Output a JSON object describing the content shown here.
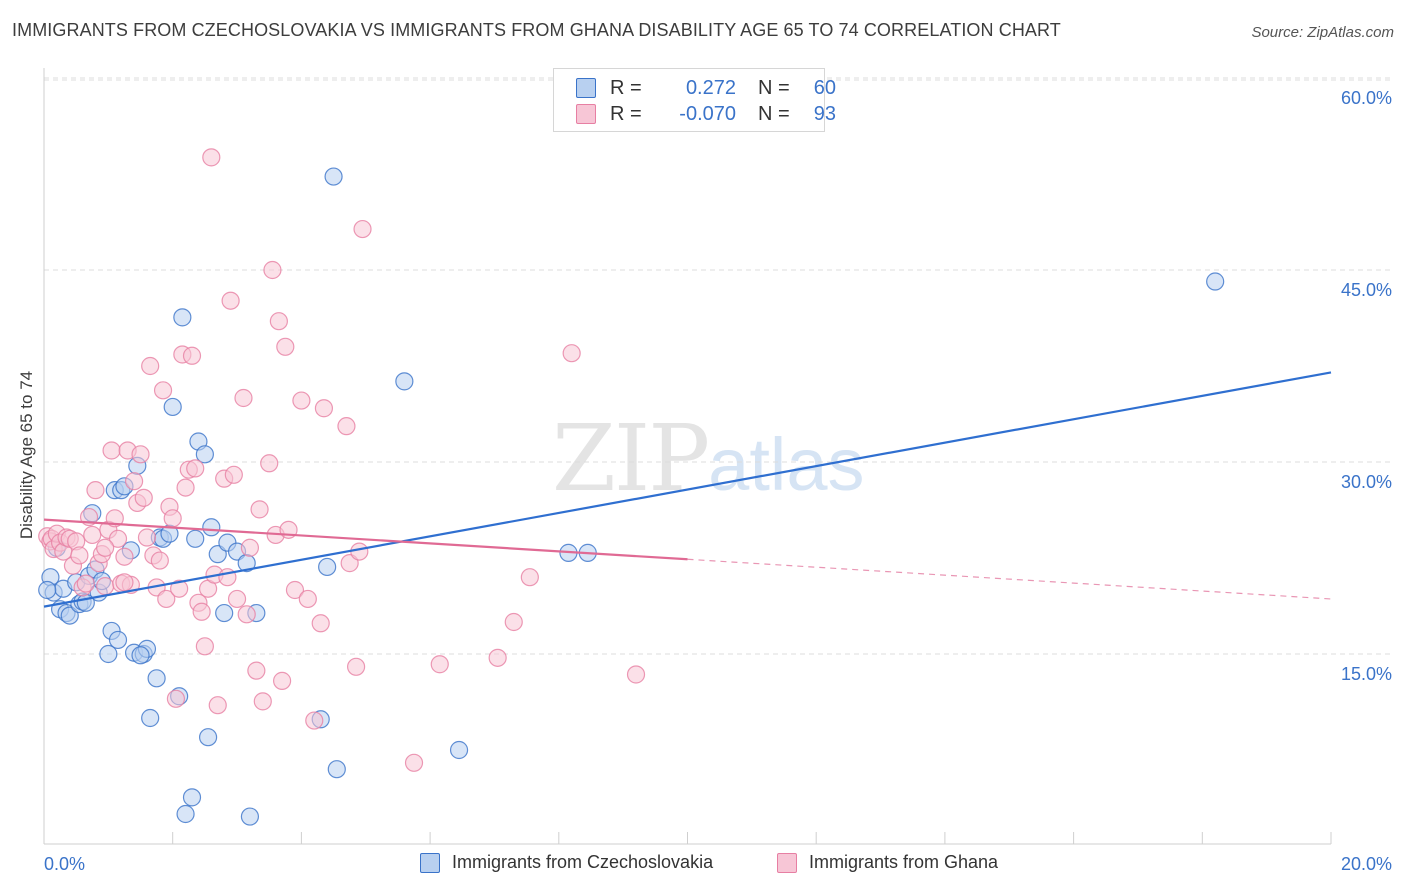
{
  "title": "IMMIGRANTS FROM CZECHOSLOVAKIA VS IMMIGRANTS FROM GHANA DISABILITY AGE 65 TO 74 CORRELATION CHART",
  "source": "Source: ZipAtlas.com",
  "watermark": {
    "zip": "ZIP",
    "atlas": "atlas"
  },
  "legend": {
    "rows": [
      {
        "r_label": "R =",
        "r_value": "0.272",
        "n_label": "N =",
        "n_value": "60"
      },
      {
        "r_label": "R =",
        "r_value": "-0.070",
        "n_label": "N =",
        "n_value": "93"
      }
    ]
  },
  "colors": {
    "blue": "#3a73c9",
    "blue_fill": "#b8d0f0",
    "blue_line": "#2f6fd0",
    "pink": "#e77fa3",
    "pink_fill": "#f7c6d6",
    "pink_line": "#e06a94",
    "grid": "#dcdcdc",
    "axis_tick_label": "#3a73c9"
  },
  "chart_data": {
    "type": "scatter",
    "title": "IMMIGRANTS FROM CZECHOSLOVAKIA VS IMMIGRANTS FROM GHANA DISABILITY AGE 65 TO 74 CORRELATION CHART",
    "xlabel": "",
    "ylabel": "Disability Age 65 to 74",
    "xlim": [
      0,
      20
    ],
    "ylim": [
      0,
      60
    ],
    "x_tick_labels": [
      "0.0%",
      "20.0%"
    ],
    "y_ticks": [
      15,
      30,
      45,
      60
    ],
    "y_tick_labels": [
      "15.0%",
      "30.0%",
      "45.0%",
      "60.0%"
    ],
    "grid": true,
    "legend_placement": "bottom",
    "series": [
      {
        "name": "Immigrants from Czechoslovakia",
        "color": "#3a73c9",
        "trend": {
          "x": [
            0,
            20
          ],
          "y": [
            18.7,
            37.0
          ],
          "dashed_from": null
        },
        "points": [
          [
            0.1,
            21.0
          ],
          [
            0.15,
            19.8
          ],
          [
            0.25,
            18.5
          ],
          [
            0.3,
            20.1
          ],
          [
            0.35,
            18.2
          ],
          [
            0.4,
            18.0
          ],
          [
            0.5,
            20.6
          ],
          [
            0.55,
            18.9
          ],
          [
            0.6,
            19.1
          ],
          [
            0.7,
            21.1
          ],
          [
            0.75,
            26.0
          ],
          [
            0.8,
            21.6
          ],
          [
            0.85,
            19.8
          ],
          [
            0.9,
            20.7
          ],
          [
            1.0,
            15.0
          ],
          [
            1.05,
            16.8
          ],
          [
            1.1,
            27.8
          ],
          [
            1.15,
            16.1
          ],
          [
            1.2,
            27.8
          ],
          [
            1.25,
            28.1
          ],
          [
            1.35,
            23.1
          ],
          [
            1.4,
            15.1
          ],
          [
            1.45,
            29.7
          ],
          [
            1.55,
            15.0
          ],
          [
            1.6,
            15.4
          ],
          [
            1.65,
            10.0
          ],
          [
            1.75,
            13.1
          ],
          [
            1.8,
            24.1
          ],
          [
            1.85,
            24.0
          ],
          [
            1.95,
            24.4
          ],
          [
            2.0,
            34.3
          ],
          [
            2.1,
            11.7
          ],
          [
            2.15,
            41.3
          ],
          [
            2.2,
            2.5
          ],
          [
            2.3,
            3.8
          ],
          [
            2.35,
            24.0
          ],
          [
            2.4,
            31.6
          ],
          [
            2.5,
            30.6
          ],
          [
            2.55,
            8.5
          ],
          [
            2.6,
            24.9
          ],
          [
            2.7,
            22.8
          ],
          [
            2.8,
            18.2
          ],
          [
            2.85,
            23.7
          ],
          [
            3.0,
            23.0
          ],
          [
            3.15,
            22.1
          ],
          [
            3.2,
            2.3
          ],
          [
            3.3,
            18.2
          ],
          [
            4.3,
            9.9
          ],
          [
            4.4,
            21.8
          ],
          [
            4.55,
            6.0
          ],
          [
            4.5,
            52.3
          ],
          [
            5.6,
            36.3
          ],
          [
            6.45,
            7.5
          ],
          [
            8.15,
            22.9
          ],
          [
            8.45,
            22.9
          ],
          [
            18.2,
            44.1
          ],
          [
            0.05,
            20.0
          ],
          [
            0.2,
            23.3
          ],
          [
            0.65,
            19.0
          ],
          [
            1.5,
            14.9
          ]
        ]
      },
      {
        "name": "Immigrants from Ghana",
        "color": "#e77fa3",
        "trend": {
          "x": [
            0,
            20
          ],
          "y": [
            25.5,
            19.3
          ],
          "dashed_from": 10.0
        },
        "points": [
          [
            0.05,
            24.2
          ],
          [
            0.1,
            23.8
          ],
          [
            0.12,
            24.0
          ],
          [
            0.15,
            23.2
          ],
          [
            0.2,
            24.4
          ],
          [
            0.25,
            23.7
          ],
          [
            0.3,
            23.0
          ],
          [
            0.35,
            24.1
          ],
          [
            0.4,
            24.0
          ],
          [
            0.45,
            21.9
          ],
          [
            0.5,
            23.8
          ],
          [
            0.55,
            22.7
          ],
          [
            0.6,
            20.2
          ],
          [
            0.65,
            20.5
          ],
          [
            0.7,
            25.7
          ],
          [
            0.75,
            24.3
          ],
          [
            0.8,
            27.8
          ],
          [
            0.85,
            22.1
          ],
          [
            0.9,
            22.8
          ],
          [
            0.95,
            20.3
          ],
          [
            1.0,
            24.7
          ],
          [
            1.05,
            30.9
          ],
          [
            1.1,
            25.6
          ],
          [
            1.15,
            24.0
          ],
          [
            1.2,
            20.5
          ],
          [
            1.25,
            22.6
          ],
          [
            1.3,
            30.9
          ],
          [
            1.35,
            20.4
          ],
          [
            1.4,
            28.5
          ],
          [
            1.45,
            26.8
          ],
          [
            1.5,
            30.6
          ],
          [
            1.55,
            27.2
          ],
          [
            1.6,
            24.1
          ],
          [
            1.65,
            37.5
          ],
          [
            1.7,
            22.7
          ],
          [
            1.75,
            20.2
          ],
          [
            1.8,
            22.3
          ],
          [
            1.85,
            35.6
          ],
          [
            1.9,
            19.3
          ],
          [
            1.95,
            26.5
          ],
          [
            2.0,
            25.6
          ],
          [
            2.05,
            11.5
          ],
          [
            2.1,
            20.1
          ],
          [
            2.15,
            38.4
          ],
          [
            2.2,
            28.0
          ],
          [
            2.25,
            29.4
          ],
          [
            2.3,
            38.3
          ],
          [
            2.35,
            29.5
          ],
          [
            2.4,
            19.0
          ],
          [
            2.5,
            15.6
          ],
          [
            2.55,
            20.1
          ],
          [
            2.6,
            53.8
          ],
          [
            2.65,
            21.2
          ],
          [
            2.7,
            11.0
          ],
          [
            2.8,
            28.7
          ],
          [
            2.85,
            21.0
          ],
          [
            2.9,
            42.6
          ],
          [
            2.95,
            29.0
          ],
          [
            3.0,
            19.3
          ],
          [
            3.1,
            35.0
          ],
          [
            3.2,
            23.3
          ],
          [
            3.3,
            13.7
          ],
          [
            3.35,
            26.3
          ],
          [
            3.4,
            11.3
          ],
          [
            3.5,
            29.9
          ],
          [
            3.6,
            24.3
          ],
          [
            3.7,
            12.9
          ],
          [
            3.75,
            39.0
          ],
          [
            3.8,
            24.7
          ],
          [
            3.9,
            20.0
          ],
          [
            4.0,
            34.8
          ],
          [
            4.1,
            19.3
          ],
          [
            4.2,
            9.8
          ],
          [
            4.3,
            17.4
          ],
          [
            4.35,
            34.2
          ],
          [
            4.7,
            32.8
          ],
          [
            4.75,
            22.1
          ],
          [
            4.85,
            14.0
          ],
          [
            4.9,
            23.0
          ],
          [
            4.95,
            48.2
          ],
          [
            3.55,
            45.0
          ],
          [
            3.65,
            41.0
          ],
          [
            5.75,
            6.5
          ],
          [
            6.15,
            14.2
          ],
          [
            7.05,
            14.7
          ],
          [
            7.3,
            17.5
          ],
          [
            7.55,
            21.0
          ],
          [
            8.2,
            38.5
          ],
          [
            9.2,
            13.4
          ],
          [
            1.25,
            20.6
          ],
          [
            0.95,
            23.3
          ],
          [
            2.45,
            18.3
          ],
          [
            3.15,
            18.1
          ]
        ]
      }
    ]
  },
  "bottom_legend": {
    "items": [
      {
        "label": "Immigrants from Czechoslovakia"
      },
      {
        "label": "Immigrants from Ghana"
      }
    ]
  }
}
